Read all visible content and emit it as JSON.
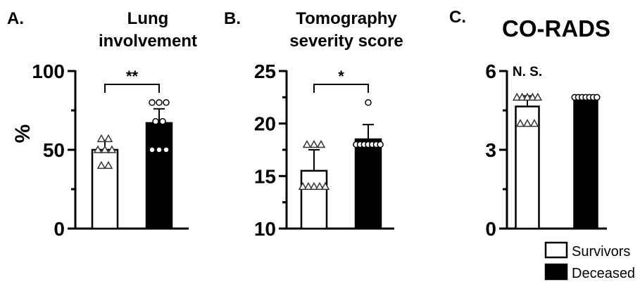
{
  "legend": [
    {
      "label": "Survivors",
      "color": "#ffffff"
    },
    {
      "label": "Deceased",
      "color": "#000000"
    }
  ],
  "chart_data": [
    {
      "type": "bar",
      "panel": "A.",
      "title": [
        "Lung",
        "involvement"
      ],
      "ylabel": "%",
      "ylim": [
        0,
        100
      ],
      "yticks": [
        "0",
        "50",
        "100"
      ],
      "categories": [
        "Survivors",
        "Deceased"
      ],
      "series": [
        {
          "values": [
            50,
            67
          ],
          "sd": [
            6,
            9
          ]
        }
      ],
      "points": [
        [
          57,
          57,
          50,
          50,
          50,
          40,
          40
        ],
        [
          80,
          80,
          80,
          68,
          68,
          50,
          50,
          50
        ]
      ],
      "markers": [
        "triangle",
        "circle"
      ],
      "significance": "**"
    },
    {
      "type": "bar",
      "panel": "B.",
      "title": [
        "Tomography",
        "severity score"
      ],
      "ylabel": "",
      "ylim": [
        10,
        25
      ],
      "yticks": [
        "10",
        "15",
        "20",
        "25"
      ],
      "categories": [
        "Survivors",
        "Deceased"
      ],
      "series": [
        {
          "values": [
            15.5,
            18.5
          ],
          "sd": [
            2,
            1.4
          ]
        }
      ],
      "points": [
        [
          18,
          18,
          18,
          14,
          14,
          14,
          14,
          14
        ],
        [
          22,
          18,
          18,
          18,
          18,
          18,
          18,
          18
        ]
      ],
      "markers": [
        "triangle",
        "circle"
      ],
      "significance": "*"
    },
    {
      "type": "bar",
      "panel": "C.",
      "title": [
        "CO-RADS"
      ],
      "ylabel": "",
      "ylim": [
        0,
        6
      ],
      "yticks": [
        "0",
        "3",
        "6"
      ],
      "categories": [
        "Survivors",
        "Deceased"
      ],
      "series": [
        {
          "values": [
            4.65,
            5
          ],
          "sd": [
            0.4,
            0
          ]
        }
      ],
      "points": [
        [
          5,
          5,
          5,
          5,
          5,
          4,
          4,
          4
        ],
        [
          5,
          5,
          5,
          5,
          5,
          5,
          5
        ]
      ],
      "markers": [
        "triangle",
        "circle"
      ],
      "significance": "N. S."
    }
  ]
}
